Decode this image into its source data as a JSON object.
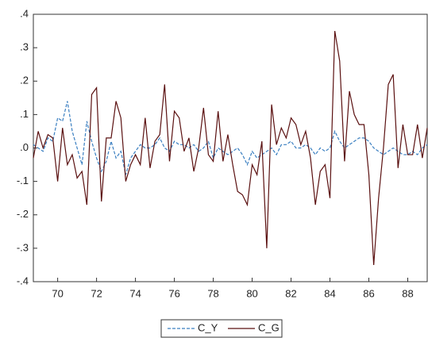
{
  "chart_data": {
    "type": "line",
    "x": [
      68.75,
      69,
      69.25,
      69.5,
      69.75,
      70,
      70.25,
      70.5,
      70.75,
      71,
      71.25,
      71.5,
      71.75,
      72,
      72.25,
      72.5,
      72.75,
      73,
      73.25,
      73.5,
      73.75,
      74,
      74.25,
      74.5,
      74.75,
      75,
      75.25,
      75.5,
      75.75,
      76,
      76.25,
      76.5,
      76.75,
      77,
      77.25,
      77.5,
      77.75,
      78,
      78.25,
      78.5,
      78.75,
      79,
      79.25,
      79.5,
      79.75,
      80,
      80.25,
      80.5,
      80.75,
      81,
      81.25,
      81.5,
      81.75,
      82,
      82.25,
      82.5,
      82.75,
      83,
      83.25,
      83.5,
      83.75,
      84,
      84.25,
      84.5,
      84.75,
      85,
      85.25,
      85.5,
      85.75,
      86,
      86.25,
      86.5,
      86.75,
      87,
      87.25,
      87.5,
      87.75,
      88,
      88.25,
      88.5,
      88.75,
      89
    ],
    "series": [
      {
        "name": "C_Y",
        "color": "#3a7fc1",
        "dashed": true,
        "values": [
          0.01,
          0.0,
          -0.01,
          0.03,
          0.02,
          0.09,
          0.08,
          0.14,
          0.05,
          0.0,
          -0.05,
          0.08,
          0.02,
          -0.03,
          -0.07,
          -0.04,
          0.02,
          -0.03,
          -0.01,
          -0.08,
          -0.03,
          -0.01,
          0.01,
          0.0,
          0.0,
          0.01,
          0.03,
          0.0,
          -0.01,
          0.02,
          0.01,
          0.01,
          0.0,
          0.01,
          -0.01,
          0.0,
          0.02,
          -0.03,
          0.0,
          -0.01,
          -0.02,
          -0.01,
          0.0,
          -0.02,
          -0.05,
          -0.01,
          -0.03,
          -0.02,
          -0.01,
          0.0,
          -0.02,
          0.01,
          0.01,
          0.02,
          0.0,
          0.0,
          0.01,
          0.0,
          -0.02,
          0.0,
          -0.01,
          0.0,
          0.05,
          0.02,
          0.0,
          0.01,
          0.02,
          0.03,
          0.03,
          0.02,
          0.0,
          -0.01,
          -0.02,
          -0.01,
          0.0,
          -0.01,
          -0.02,
          -0.02,
          -0.01,
          -0.02,
          0.0,
          0.01
        ]
      },
      {
        "name": "C_G",
        "color": "#5a1010",
        "dashed": false,
        "values": [
          -0.03,
          0.05,
          0.0,
          0.04,
          0.03,
          -0.1,
          0.06,
          -0.05,
          -0.02,
          -0.09,
          -0.07,
          -0.17,
          0.16,
          0.18,
          -0.16,
          0.03,
          0.03,
          0.14,
          0.09,
          -0.1,
          -0.05,
          -0.02,
          -0.05,
          0.09,
          -0.06,
          0.02,
          0.04,
          0.19,
          -0.04,
          0.11,
          0.09,
          -0.01,
          0.03,
          -0.07,
          0.0,
          0.12,
          -0.02,
          -0.04,
          0.11,
          -0.04,
          0.04,
          -0.05,
          -0.13,
          -0.14,
          -0.17,
          -0.05,
          -0.08,
          0.02,
          -0.3,
          0.13,
          0.01,
          0.06,
          0.03,
          0.09,
          0.07,
          0.01,
          0.05,
          -0.03,
          -0.17,
          -0.07,
          -0.05,
          -0.15,
          0.35,
          0.26,
          -0.04,
          0.17,
          0.1,
          0.07,
          0.07,
          -0.08,
          -0.35,
          -0.15,
          0.0,
          0.19,
          0.22,
          -0.06,
          0.07,
          -0.02,
          -0.02,
          0.07,
          -0.03,
          0.06
        ]
      }
    ],
    "xlim": [
      68.75,
      89
    ],
    "xticks": [
      70,
      72,
      74,
      76,
      78,
      80,
      82,
      84,
      86,
      88
    ],
    "ylim": [
      -0.4,
      0.4
    ],
    "yticks": [
      {
        "value": -0.4,
        "label": "-.4"
      },
      {
        "value": -0.3,
        "label": "-.3"
      },
      {
        "value": -0.2,
        "label": "-.2"
      },
      {
        "value": -0.1,
        "label": "-.1"
      },
      {
        "value": 0,
        "label": ".0"
      },
      {
        "value": 0.1,
        "label": ".1"
      },
      {
        "value": 0.2,
        "label": ".2"
      },
      {
        "value": 0.3,
        "label": ".3"
      },
      {
        "value": 0.4,
        "label": ".4"
      }
    ],
    "legend": "bottom"
  }
}
